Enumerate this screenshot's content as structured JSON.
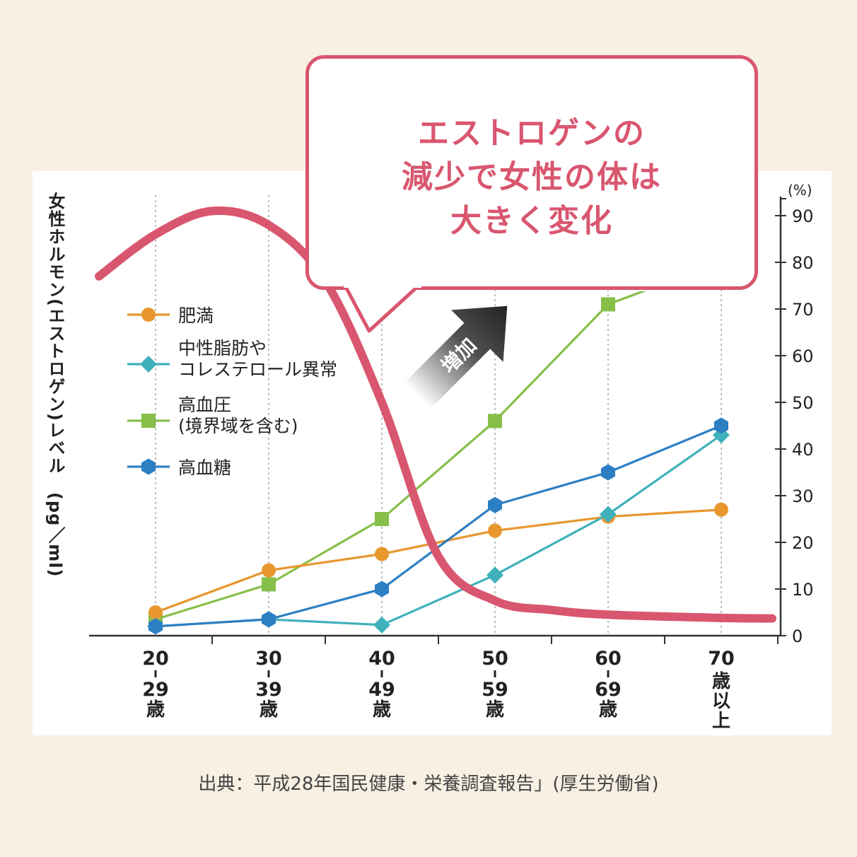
{
  "callout": {
    "lines": [
      "エストロゲンの",
      "減少で女性の体は",
      "大きく変化"
    ]
  },
  "source": "出典：平成28年国民健康・栄養調査報告」(厚生労働省)",
  "arrow_label": "増加",
  "colors": {
    "background": "#f8f0e3",
    "estrogen": "#d9566f",
    "obesity": "#e8972f",
    "lipid": "#3fb1bb",
    "hypertension": "#86bf4a",
    "diabetes": "#2d7fc4"
  },
  "chart_data": {
    "type": "line",
    "xlabel": "",
    "ylabel_left": "女性ホルモン(エストロゲン)レベル　(pg／ml)",
    "ylabel_right": "(%)",
    "categories": [
      [
        "20",
        "29",
        "歳"
      ],
      [
        "30",
        "39",
        "歳"
      ],
      [
        "40",
        "49",
        "歳"
      ],
      [
        "50",
        "59",
        "歳"
      ],
      [
        "60",
        "69",
        "歳"
      ],
      [
        "70",
        "歳",
        "以",
        "上"
      ]
    ],
    "y_right": {
      "range": [
        0,
        90
      ],
      "ticks": [
        "0",
        "10",
        "20",
        "30",
        "40",
        "50",
        "60",
        "70",
        "80",
        "90"
      ]
    },
    "grid": "vertical dotted at categories",
    "legend_position": "left",
    "series": [
      {
        "name": "肥満",
        "marker": "circle",
        "values": [
          5,
          14,
          17.5,
          22.5,
          25.5,
          27
        ]
      },
      {
        "name": "中性脂肪や\nコレステロール異常",
        "marker": "diamond",
        "values": [
          2,
          3.5,
          2.3,
          13,
          26,
          43
        ]
      },
      {
        "name": "高血圧\n(境界域を含む)",
        "marker": "square",
        "values": [
          3.5,
          11,
          25,
          46,
          71,
          80
        ]
      },
      {
        "name": "高血糖",
        "marker": "hexagon",
        "values": [
          2,
          3.5,
          10,
          28,
          35,
          45
        ]
      }
    ],
    "estrogen_curve": {
      "x": [
        -0.5,
        0,
        0.5,
        1,
        1.5,
        2,
        2.5,
        3,
        3.5,
        4,
        5,
        5.45
      ],
      "y": [
        77,
        86,
        91,
        88,
        76,
        50,
        17,
        7.5,
        5.5,
        4.5,
        3.8,
        3.7
      ]
    }
  }
}
